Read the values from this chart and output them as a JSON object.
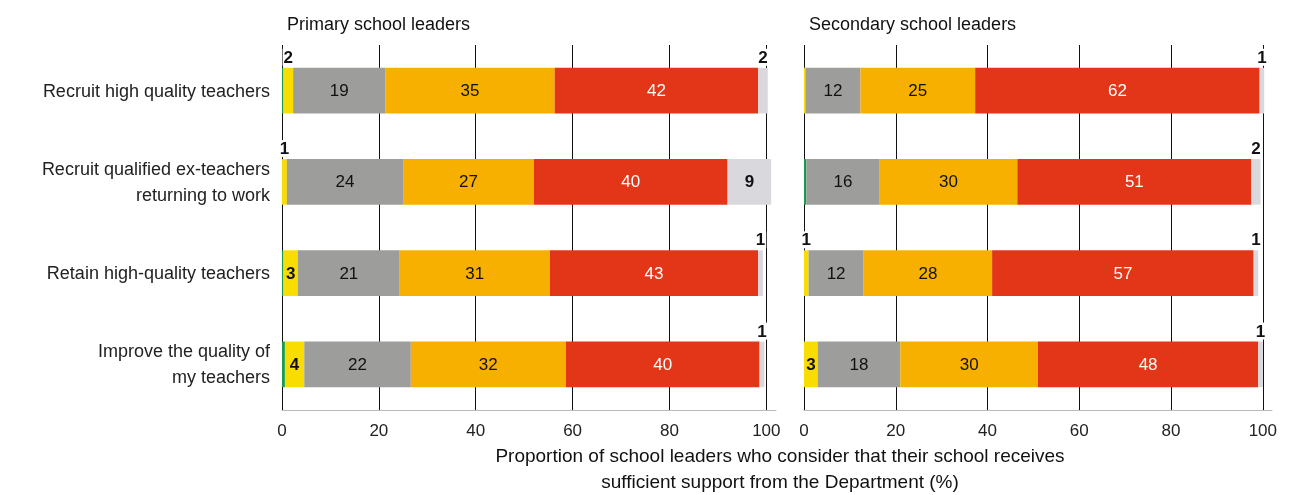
{
  "chart_data": [
    {
      "type": "bar",
      "orientation": "horizontal",
      "stacked": true,
      "title": "Primary school leaders",
      "xlabel": "Proportion of school leaders who consider that their school receives\nsufficient support from the Department (%)",
      "categories": [
        "Recruit high quality teachers",
        "Recruit qualified ex-teachers\nreturning to work",
        "Retain high-quality teachers",
        "Improve the quality of\nmy teachers"
      ],
      "xlim": [
        0,
        102
      ],
      "xticks": [
        0,
        20,
        40,
        60,
        80,
        100
      ],
      "grid": "x",
      "series": [
        {
          "color": "#1a9a4a",
          "values": [
            0.3,
            0,
            0.3,
            0.6
          ],
          "value_labels": [
            null,
            null,
            null,
            null
          ]
        },
        {
          "color": "#f9dc00",
          "values": [
            2,
            1,
            3,
            4
          ],
          "value_labels": [
            "2",
            "1",
            "3",
            "4"
          ]
        },
        {
          "color": "#9d9d9b",
          "values": [
            19,
            24,
            21,
            22
          ],
          "value_labels": [
            "19",
            "24",
            "21",
            "22"
          ]
        },
        {
          "color": "#f8b000",
          "values": [
            35,
            27,
            31,
            32
          ],
          "value_labels": [
            "35",
            "27",
            "31",
            "32"
          ]
        },
        {
          "color": "#e33618",
          "values": [
            42,
            40,
            43,
            40
          ],
          "value_labels": [
            "42",
            "40",
            "43",
            "40"
          ]
        },
        {
          "color": "#d9d8dd",
          "values": [
            2,
            9,
            1,
            1
          ],
          "value_labels": [
            "2",
            "9",
            "1",
            "1"
          ]
        }
      ]
    },
    {
      "type": "bar",
      "orientation": "horizontal",
      "stacked": true,
      "title": "Secondary school leaders",
      "categories": [
        null,
        null,
        null,
        null
      ],
      "xlim": [
        0,
        102
      ],
      "xticks": [
        0,
        20,
        40,
        60,
        80,
        100
      ],
      "grid": "x",
      "tick_labels": "x",
      "series": [
        {
          "color": "#1a9a4a",
          "values": [
            0,
            0.5,
            0,
            0
          ],
          "value_labels": [
            null,
            null,
            null,
            null
          ]
        },
        {
          "color": "#f9dc00",
          "values": [
            0.3,
            0,
            1,
            3
          ],
          "value_labels": [
            null,
            null,
            "1",
            "3"
          ]
        },
        {
          "color": "#9d9d9b",
          "values": [
            12,
            16,
            12,
            18
          ],
          "value_labels": [
            "12",
            "16",
            "12",
            "18"
          ]
        },
        {
          "color": "#f8b000",
          "values": [
            25,
            30,
            28,
            30
          ],
          "value_labels": [
            "25",
            "30",
            "28",
            "30"
          ]
        },
        {
          "color": "#e33618",
          "values": [
            62,
            51,
            57,
            48
          ],
          "value_labels": [
            "62",
            "51",
            "57",
            "48"
          ]
        },
        {
          "color": "#d9d8dd",
          "values": [
            1,
            2,
            1,
            1
          ],
          "value_labels": [
            "1",
            "2",
            "1",
            "1"
          ]
        }
      ]
    }
  ]
}
